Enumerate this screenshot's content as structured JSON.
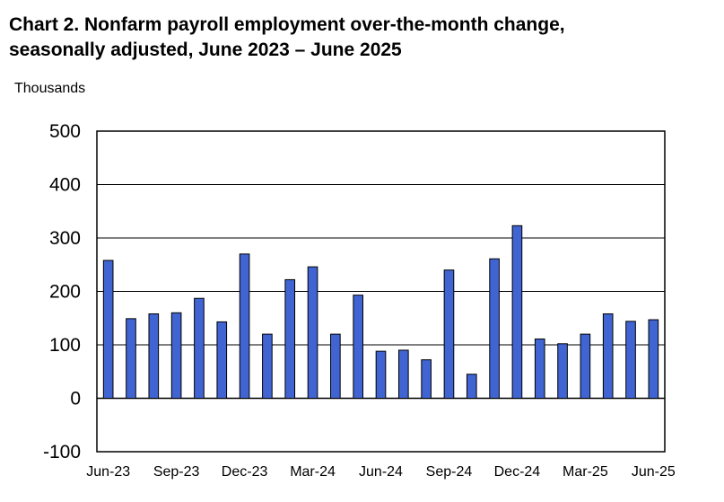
{
  "chart_data": {
    "type": "bar",
    "title_line1": "Chart 2. Nonfarm payroll employment over-the-month change,",
    "title_line2": "seasonally adjusted, June 2023 – June 2025",
    "ylabel": "Thousands",
    "ylim": [
      -100,
      500
    ],
    "yticks": [
      500,
      400,
      300,
      200,
      100,
      0,
      -100
    ],
    "ytick_labels": [
      "500",
      "400",
      "300",
      "200",
      "100",
      "0",
      "-100"
    ],
    "grid": true,
    "bar_color": "#4064d2",
    "categories": [
      "Jun-23",
      "Jul-23",
      "Aug-23",
      "Sep-23",
      "Oct-23",
      "Nov-23",
      "Dec-23",
      "Jan-24",
      "Feb-24",
      "Mar-24",
      "Apr-24",
      "May-24",
      "Jun-24",
      "Jul-24",
      "Aug-24",
      "Sep-24",
      "Oct-24",
      "Nov-24",
      "Dec-24",
      "Jan-25",
      "Feb-25",
      "Mar-25",
      "Apr-25",
      "May-25",
      "Jun-25"
    ],
    "values": [
      258,
      149,
      158,
      160,
      187,
      143,
      270,
      120,
      222,
      246,
      120,
      193,
      88,
      90,
      72,
      240,
      45,
      261,
      323,
      111,
      102,
      120,
      158,
      144,
      147
    ],
    "xtick_labels": [
      {
        "index": 0,
        "label": "Jun-23"
      },
      {
        "index": 3,
        "label": "Sep-23"
      },
      {
        "index": 6,
        "label": "Dec-23"
      },
      {
        "index": 9,
        "label": "Mar-24"
      },
      {
        "index": 12,
        "label": "Jun-24"
      },
      {
        "index": 15,
        "label": "Sep-24"
      },
      {
        "index": 18,
        "label": "Dec-24"
      },
      {
        "index": 21,
        "label": "Mar-25"
      },
      {
        "index": 24,
        "label": "Jun-25"
      }
    ]
  }
}
